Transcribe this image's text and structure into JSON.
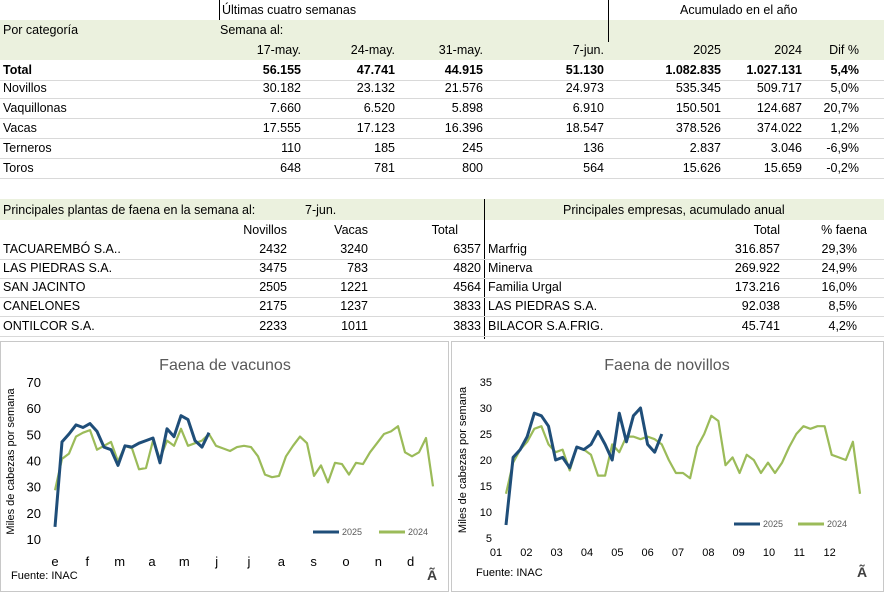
{
  "top": {
    "header_weeks": "Últimas cuatro semanas",
    "header_year": "Acumulado en el año",
    "category_label": "Por categoría",
    "week_label": "Semana al:",
    "col_w1": "17-may.",
    "col_w2": "24-may.",
    "col_w3": "31-may.",
    "col_w4": "7-jun.",
    "col_y1": "2025",
    "col_y2": "2024",
    "col_dif": "Dif %",
    "rows": [
      {
        "name": "Total",
        "w1": "56.155",
        "w2": "47.741",
        "w3": "44.915",
        "w4": "51.130",
        "y1": "1.082.835",
        "y2": "1.027.131",
        "dif": "5,4%"
      },
      {
        "name": "Novillos",
        "w1": "30.182",
        "w2": "23.132",
        "w3": "21.576",
        "w4": "24.973",
        "y1": "535.345",
        "y2": "509.717",
        "dif": "5,0%"
      },
      {
        "name": "Vaquillonas",
        "w1": "7.660",
        "w2": "6.520",
        "w3": "5.898",
        "w4": "6.910",
        "y1": "150.501",
        "y2": "124.687",
        "dif": "20,7%"
      },
      {
        "name": "Vacas",
        "w1": "17.555",
        "w2": "17.123",
        "w3": "16.396",
        "w4": "18.547",
        "y1": "378.526",
        "y2": "374.022",
        "dif": "1,2%"
      },
      {
        "name": "Terneros",
        "w1": "110",
        "w2": "185",
        "w3": "245",
        "w4": "136",
        "y1": "2.837",
        "y2": "3.046",
        "dif": "-6,9%"
      },
      {
        "name": "Toros",
        "w1": "648",
        "w2": "781",
        "w3": "800",
        "w4": "564",
        "y1": "15.626",
        "y2": "15.659",
        "dif": "-0,2%"
      }
    ]
  },
  "plants": {
    "header": "Principales plantas de faena en la semana al:",
    "date": "7-jun.",
    "col_nov": "Novillos",
    "col_vac": "Vacas",
    "col_tot": "Total",
    "rows": [
      {
        "name": "TACUAREMBÓ S.A..",
        "nov": "2432",
        "vac": "3240",
        "tot": "6357"
      },
      {
        "name": "LAS PIEDRAS S.A.",
        "nov": "3475",
        "vac": "783",
        "tot": "4820"
      },
      {
        "name": "SAN JACINTO",
        "nov": "2505",
        "vac": "1221",
        "tot": "4564"
      },
      {
        "name": "CANELONES",
        "nov": "2175",
        "vac": "1237",
        "tot": "3833"
      },
      {
        "name": "ONTILCOR S.A.",
        "nov": "2233",
        "vac": "1011",
        "tot": "3833"
      }
    ]
  },
  "companies": {
    "header": "Principales empresas, acumulado anual",
    "col_total": "Total",
    "col_pct": "% faena",
    "rows": [
      {
        "name": "Marfrig",
        "total": "316.857",
        "pct": "29,3%"
      },
      {
        "name": "Minerva",
        "total": "269.922",
        "pct": "24,9%"
      },
      {
        "name": "Familia Urgal",
        "total": "173.216",
        "pct": "16,0%"
      },
      {
        "name": "LAS PIEDRAS S.A.",
        "total": "92.038",
        "pct": "8,5%"
      },
      {
        "name": "BILACOR S.A.FRIG.",
        "total": "45.741",
        "pct": "4,2%"
      }
    ]
  },
  "colors": {
    "band": "#ebf1de",
    "s2025": "#1f4e79",
    "s2024": "#9bbb59"
  },
  "chart_data": [
    {
      "type": "line",
      "title": "Faena de vacunos",
      "ylabel": "Miles de cabezas por semana",
      "ylim": [
        10,
        70
      ],
      "yticks": [
        10,
        20,
        30,
        40,
        50,
        60,
        70
      ],
      "xticks": [
        "e",
        "f",
        "m",
        "a",
        "m",
        "j",
        "j",
        "a",
        "s",
        "o",
        "n",
        "d"
      ],
      "source": "Fuente:  INAC",
      "corner_mark": "Ã",
      "series": [
        {
          "name": "2025",
          "values": [
            15,
            47.5,
            50.5,
            54,
            53,
            54.5,
            51.5,
            45.5,
            44.5,
            38.5,
            46,
            45.5,
            47,
            48,
            49,
            39.5,
            52.5,
            49.5,
            57.5,
            56,
            48,
            45.5,
            51
          ]
        },
        {
          "name": "2024",
          "values": [
            29,
            41,
            43,
            49.5,
            51,
            52,
            44.5,
            46,
            47.5,
            40,
            46,
            45,
            37,
            37.5,
            48,
            41,
            48,
            46,
            52.5,
            46,
            47,
            48,
            50.5,
            46,
            45,
            44,
            45.5,
            46,
            45.5,
            42,
            35,
            34,
            34.5,
            42,
            46,
            49.5,
            47,
            34.5,
            38.5,
            32,
            39.5,
            39,
            35,
            39.5,
            39,
            43.5,
            47,
            50.5,
            51.5,
            53.5,
            43.5,
            42,
            43.5,
            49,
            30.5
          ]
        }
      ]
    },
    {
      "type": "line",
      "title": "Faena de novillos",
      "ylabel": "Miles de cabezas por semana",
      "ylim": [
        5,
        35
      ],
      "yticks": [
        5,
        10,
        15,
        20,
        25,
        30,
        35
      ],
      "xticks": [
        "01",
        "02",
        "03",
        "04",
        "05",
        "06",
        "07",
        "08",
        "09",
        "10",
        "11",
        "12"
      ],
      "source": "Fuente:  INAC",
      "corner_mark": "Ã",
      "series": [
        {
          "name": "2025",
          "values": [
            7.5,
            20.5,
            22,
            24.5,
            29,
            28.5,
            26.5,
            20,
            20.5,
            18.5,
            22.5,
            22,
            23,
            25.5,
            23,
            20,
            29,
            23.5,
            28.5,
            30,
            23,
            21.5,
            25
          ]
        },
        {
          "name": "2024",
          "values": [
            13.5,
            19.5,
            22,
            23.5,
            26,
            26.5,
            23,
            21.5,
            22,
            18,
            22.5,
            22,
            21,
            17,
            17,
            23,
            21.5,
            24.5,
            24.5,
            24,
            24.5,
            24,
            23,
            20,
            17.5,
            17.5,
            16.5,
            22.5,
            25,
            28.5,
            27.5,
            19,
            20.5,
            17.5,
            21,
            20,
            17.5,
            19.5,
            17.5,
            19.5,
            22.5,
            25,
            26.5,
            26,
            26.5,
            26.5,
            21,
            20.5,
            20,
            23.5,
            13.5
          ]
        }
      ]
    }
  ]
}
